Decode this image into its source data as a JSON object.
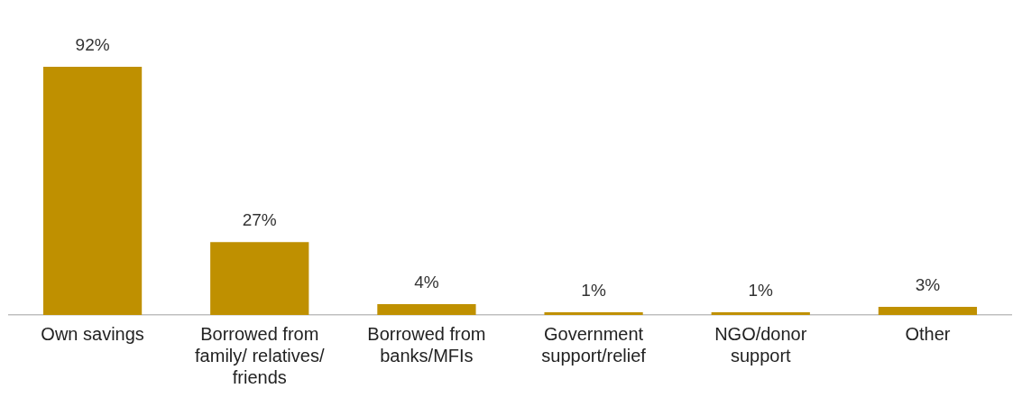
{
  "chart_data": {
    "type": "bar",
    "categories": [
      "Own savings",
      "Borrowed from family/ relatives/ friends",
      "Borrowed from banks/MFIs",
      "Government support/relief",
      "NGO/donor support",
      "Other"
    ],
    "values": [
      92,
      27,
      4,
      1,
      1,
      3
    ],
    "color": "#bf9000",
    "value_labels": [
      "92%",
      "27%",
      "4%",
      "1%",
      "1%",
      "3%"
    ],
    "grid": false,
    "legend": false
  }
}
